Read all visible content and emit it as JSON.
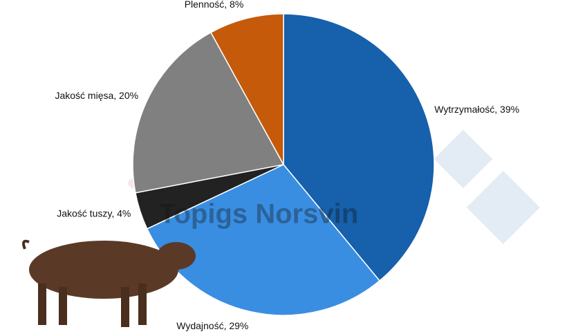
{
  "chart_data": {
    "type": "pie",
    "values": [
      39,
      29,
      4,
      20,
      8
    ],
    "value_labels": [
      "Wytrzymałość, 39%",
      "Wydajność, 29%",
      "Jakość tuszy, 4%",
      "Jakość mięsa, 20%",
      "Plenność, 8%"
    ],
    "colors": [
      "#1660ac",
      "#3a8ee2",
      "#222222",
      "#808080",
      "#c55a0b"
    ],
    "start_angle": 0,
    "direction": "clockwise"
  },
  "watermark": "Topigs Norsvin"
}
